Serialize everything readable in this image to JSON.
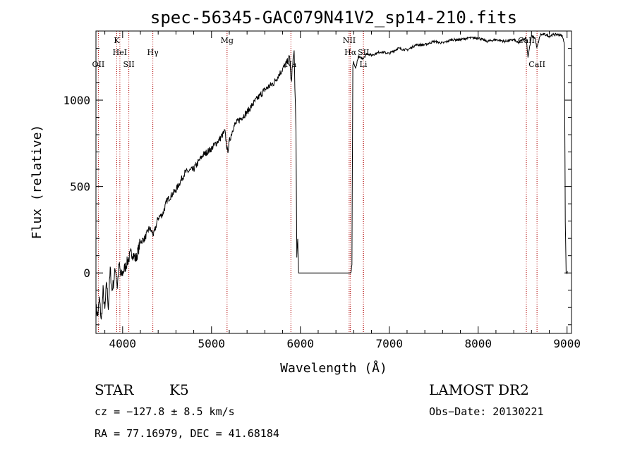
{
  "chart_data": {
    "type": "line",
    "title": "spec-56345-GAC079N41V2_sp14-210.fits",
    "xlabel": "Wavelength (Å)",
    "ylabel": "Flux (relative)",
    "xlim": [
      3700,
      9050
    ],
    "ylim": [
      -350,
      1400
    ],
    "xticks": [
      "4000",
      "5000",
      "6000",
      "7000",
      "8000",
      "9000"
    ],
    "yticks": [
      "0",
      "500",
      "1000"
    ],
    "series": [
      {
        "x": [
          3700,
          3720,
          3740,
          3760,
          3780,
          3800,
          3820,
          3840,
          3860,
          3880,
          3900,
          3920,
          3940,
          3960,
          3980,
          4000,
          4050,
          4100,
          4150,
          4200,
          4250,
          4300,
          4350,
          4400,
          4450,
          4500,
          4600,
          4700,
          4800,
          4900,
          5000,
          5100,
          5150,
          5180,
          5200,
          5250,
          5300,
          5400,
          5500,
          5600,
          5700,
          5800,
          5850,
          5880,
          5890,
          5900,
          5910,
          5930,
          5950,
          5960,
          5970,
          5980,
          6000,
          6100,
          6200,
          6300,
          6400,
          6500,
          6570,
          6580,
          6590,
          6600,
          6620,
          6650,
          6700,
          6750,
          6800,
          6900,
          7000,
          7100,
          7200,
          7300,
          7400,
          7500,
          7600,
          7700,
          7800,
          7900,
          8000,
          8100,
          8200,
          8300,
          8400,
          8450,
          8500,
          8540,
          8560,
          8600,
          8640,
          8660,
          8700,
          8750,
          8800,
          8850,
          8900,
          8950,
          8970,
          8980,
          8990,
          9000,
          9005
        ],
        "y": [
          -200,
          -250,
          -150,
          -280,
          -100,
          -220,
          -50,
          -200,
          20,
          -100,
          -50,
          30,
          -80,
          50,
          -20,
          0,
          60,
          120,
          80,
          180,
          200,
          260,
          220,
          320,
          340,
          420,
          480,
          580,
          600,
          680,
          720,
          780,
          820,
          700,
          760,
          850,
          880,
          930,
          1000,
          1060,
          1100,
          1180,
          1220,
          1250,
          1150,
          1100,
          1200,
          1280,
          800,
          100,
          200,
          0,
          0,
          0,
          0,
          0,
          0,
          0,
          0,
          50,
          1200,
          1220,
          1180,
          1250,
          1240,
          1270,
          1260,
          1280,
          1270,
          1300,
          1290,
          1320,
          1320,
          1340,
          1330,
          1350,
          1350,
          1360,
          1360,
          1340,
          1350,
          1340,
          1350,
          1330,
          1350,
          1360,
          1250,
          1370,
          1360,
          1300,
          1380,
          1380,
          1370,
          1380,
          1380,
          1370,
          1320,
          300,
          0,
          0,
          10
        ]
      }
    ],
    "lines": [
      {
        "x": 3727,
        "label": "OII",
        "row": 3
      },
      {
        "x": 3934,
        "label": "K",
        "row": 1
      },
      {
        "x": 3969,
        "label": "HeI",
        "row": 2
      },
      {
        "x": 4070,
        "label": "SII",
        "row": 3
      },
      {
        "x": 4340,
        "label": "Hγ",
        "row": 2
      },
      {
        "x": 5175,
        "label": "Mg",
        "row": 1
      },
      {
        "x": 5893,
        "label": "Na",
        "row": 3
      },
      {
        "x": 6549,
        "label": "NII",
        "row": 1
      },
      {
        "x": 6563,
        "label": "Hα",
        "row": 2
      },
      {
        "x": 6710,
        "label": "SII",
        "row": 2
      },
      {
        "x": 6708,
        "label": "Li",
        "row": 3
      },
      {
        "x": 8542,
        "label": "CaII",
        "row": 1
      },
      {
        "x": 8662,
        "label": "CaII",
        "row": 3
      }
    ]
  },
  "info": {
    "class": "STAR",
    "subclass": "K5",
    "survey": "LAMOST DR2",
    "cz": "cz = −127.8 ± 8.5 km/s",
    "obs_date": "Obs−Date: 20130221",
    "coords": "RA =  77.16979, DEC =  41.68184"
  }
}
